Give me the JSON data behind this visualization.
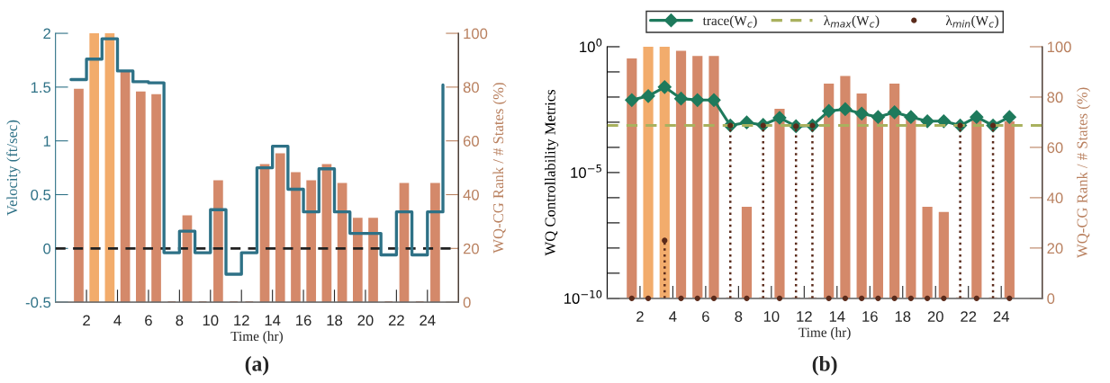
{
  "chart_data": [
    {
      "type": "bar",
      "xlabel": "Time (hr)",
      "ylabel": "Velocity (ft/sec)",
      "y2label": "WQ-CG Rank / # States (%)",
      "x": [
        1.5,
        2.5,
        3.5,
        4.5,
        5.5,
        6.5,
        7.5,
        8.5,
        9.5,
        10.5,
        11.5,
        12.5,
        13.5,
        14.5,
        15.5,
        16.5,
        17.5,
        18.5,
        19.5,
        20.5,
        21.5,
        22.5,
        23.5,
        24.5
      ],
      "series": [
        {
          "axis": "y2",
          "values": [
            79,
            100,
            100,
            86,
            78,
            77,
            0,
            32,
            0,
            45,
            0,
            0,
            51,
            55,
            48,
            45,
            51,
            44,
            31,
            31,
            0,
            44,
            0,
            44
          ],
          "colors": [
            "#d4896a",
            "#f2ac6c",
            "#f2ac6c",
            "#d4896a",
            "#d4896a",
            "#d4896a",
            "#d4896a",
            "#d4896a",
            "#d4896a",
            "#d4896a",
            "#d4896a",
            "#d4896a",
            "#d4896a",
            "#d4896a",
            "#d4896a",
            "#d4896a",
            "#d4896a",
            "#d4896a",
            "#d4896a",
            "#d4896a",
            "#d4896a",
            "#d4896a",
            "#d4896a",
            "#d4896a"
          ]
        },
        {
          "type": "step",
          "color": "#2e7186",
          "x": [
            1,
            2,
            3,
            4,
            5,
            6,
            7,
            8,
            9,
            10,
            11,
            12,
            13,
            14,
            15,
            16,
            17,
            18,
            19,
            20,
            21,
            22,
            23,
            24,
            25
          ],
          "values": [
            1.57,
            1.76,
            1.95,
            1.65,
            1.55,
            1.54,
            -0.04,
            0.16,
            -0.04,
            0.36,
            -0.24,
            -0.04,
            0.75,
            0.95,
            0.55,
            0.34,
            0.74,
            0.34,
            0.14,
            0.14,
            -0.06,
            0.34,
            -0.06,
            0.34,
            1.52
          ]
        }
      ],
      "xlim": [
        0,
        26
      ],
      "xticks": [
        2,
        4,
        6,
        8,
        10,
        12,
        14,
        16,
        18,
        20,
        22,
        24
      ],
      "ylim": [
        -0.5,
        2
      ],
      "yticks": [
        -0.5,
        0,
        0.5,
        1,
        1.5,
        2
      ],
      "y2lim": [
        0,
        100
      ],
      "y2ticks": [
        0,
        20,
        40,
        60,
        80,
        100
      ],
      "ref_lines": [
        {
          "axis": "y",
          "value": 0,
          "color": "#222222",
          "line_style": "dashed"
        }
      ],
      "annotations": [
        "(a)"
      ]
    },
    {
      "type": "bar",
      "xlabel": "Time (hr)",
      "ylabel": "WQ Controllability Metrics",
      "y2label": "WQ-CG Rank / # States (%)",
      "x": [
        1.5,
        2.5,
        3.5,
        4.5,
        5.5,
        6.5,
        7.5,
        8.5,
        9.5,
        10.5,
        11.5,
        12.5,
        13.5,
        14.5,
        15.5,
        16.5,
        17.5,
        18.5,
        19.5,
        20.5,
        21.5,
        22.5,
        23.5,
        24.5
      ],
      "log": "y",
      "series": [
        {
          "axis": "y2",
          "values": [
            95,
            100,
            100,
            98,
            96,
            96,
            0,
            36,
            0,
            75,
            0,
            0,
            85,
            88,
            81,
            72,
            85,
            71,
            36,
            34,
            0,
            71,
            0,
            70
          ],
          "colors": [
            "#d4896a",
            "#f2ac6c",
            "#f2ac6c",
            "#d4896a",
            "#d4896a",
            "#d4896a",
            "#d4896a",
            "#d4896a",
            "#d4896a",
            "#d4896a",
            "#d4896a",
            "#d4896a",
            "#d4896a",
            "#d4896a",
            "#d4896a",
            "#d4896a",
            "#d4896a",
            "#d4896a",
            "#d4896a",
            "#d4896a",
            "#d4896a",
            "#d4896a",
            "#d4896a",
            "#d4896a"
          ]
        },
        {
          "type": "line",
          "name": "trace(W$_{c}$)",
          "color": "#1e7a5c",
          "marker": "diamond",
          "line_style": "solid",
          "values": [
            0.0076,
            0.011,
            0.025,
            0.0087,
            0.0076,
            0.0076,
            0.00074,
            0.00098,
            0.00078,
            0.0015,
            0.00069,
            0.00074,
            0.0028,
            0.0033,
            0.0022,
            0.0016,
            0.0025,
            0.0016,
            0.0011,
            0.0011,
            0.00074,
            0.0016,
            0.00074,
            0.0016
          ]
        },
        {
          "type": "line",
          "name": "λ$_{max}$(W$_{c}$)",
          "color": "#a9b15e",
          "marker": "none",
          "line_style": "dashed",
          "x": [
            0,
            26.5
          ],
          "values": [
            0.00074,
            0.00074
          ]
        },
        {
          "type": "lollipop",
          "name": "λ$_{min}$(W$_{c}$)",
          "color": "#5a2a1a",
          "line_style": "dotted",
          "marker": "circle",
          "values": [
            1e-10,
            1e-10,
            2e-08,
            1e-10,
            1e-10,
            1e-10,
            0.00074,
            1e-10,
            0.00074,
            1e-10,
            0.00069,
            0.00074,
            1e-10,
            1e-10,
            1e-10,
            1e-10,
            1e-10,
            1e-10,
            1e-10,
            1e-10,
            0.00074,
            1e-10,
            0.00074,
            1e-10
          ]
        }
      ],
      "xlim": [
        0,
        26.5
      ],
      "xticks": [
        2,
        4,
        6,
        8,
        10,
        12,
        14,
        16,
        18,
        20,
        22,
        24
      ],
      "ylim": [
        1e-10,
        1
      ],
      "yticks": [
        {
          "value": 1e-10,
          "label": "10$^{−10}$"
        },
        {
          "value": 1e-09,
          "label": null
        },
        {
          "value": 1e-08,
          "label": null
        },
        {
          "value": 1e-07,
          "label": null
        },
        {
          "value": 1e-06,
          "label": null
        },
        {
          "value": 1e-05,
          "label": "10$^{−5}$"
        },
        {
          "value": 0.0001,
          "label": null
        },
        {
          "value": 0.001,
          "label": null
        },
        {
          "value": 0.01,
          "label": null
        },
        {
          "value": 0.1,
          "label": null
        },
        {
          "value": 1,
          "label": "10$^{0}$"
        }
      ],
      "y2lim": [
        0,
        100
      ],
      "y2ticks": [
        0,
        20,
        40,
        60,
        80,
        100
      ],
      "legend": "top",
      "annotations": [
        "(b)"
      ]
    }
  ]
}
